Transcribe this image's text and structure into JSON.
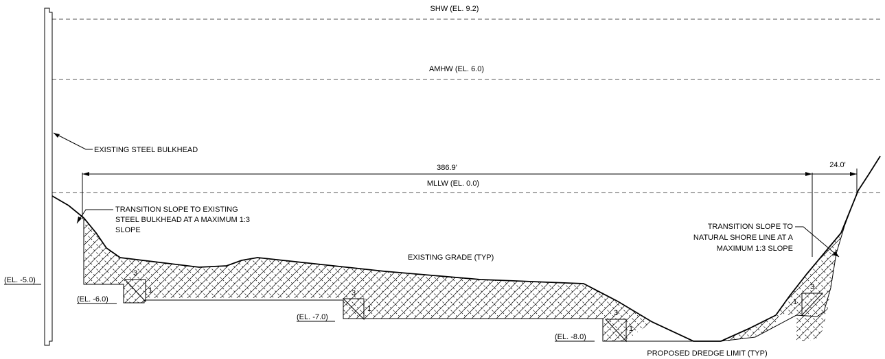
{
  "water_levels": {
    "shw": "SHW (EL. 9.2)",
    "amhw": "AMHW (EL. 6.0)",
    "mllw": "MLLW (EL. 0.0)"
  },
  "callouts": {
    "bulkhead": "EXISTING STEEL BULKHEAD",
    "transition_left": [
      "TRANSITION SLOPE TO EXISTING",
      "STEEL BULKHEAD AT A MAXIMUM 1:3",
      "SLOPE"
    ],
    "transition_right": [
      "TRANSITION SLOPE TO",
      "NATURAL SHORE LINE AT A",
      "MAXIMUM 1:3 SLOPE"
    ],
    "existing_grade": "EXISTING GRADE (TYP)",
    "dredge_limit": "PROPOSED DREDGE LIMIT (TYP)"
  },
  "dimensions": {
    "main": "386.9'",
    "right": "24.0'"
  },
  "elevations": {
    "el_m5": "(EL. -5.0)",
    "el_m6": "(EL. -6.0)",
    "el_m7": "(EL. -7.0)",
    "el_m8": "(EL. -8.0)"
  },
  "slope_marks": {
    "run": "3",
    "rise": "1"
  }
}
